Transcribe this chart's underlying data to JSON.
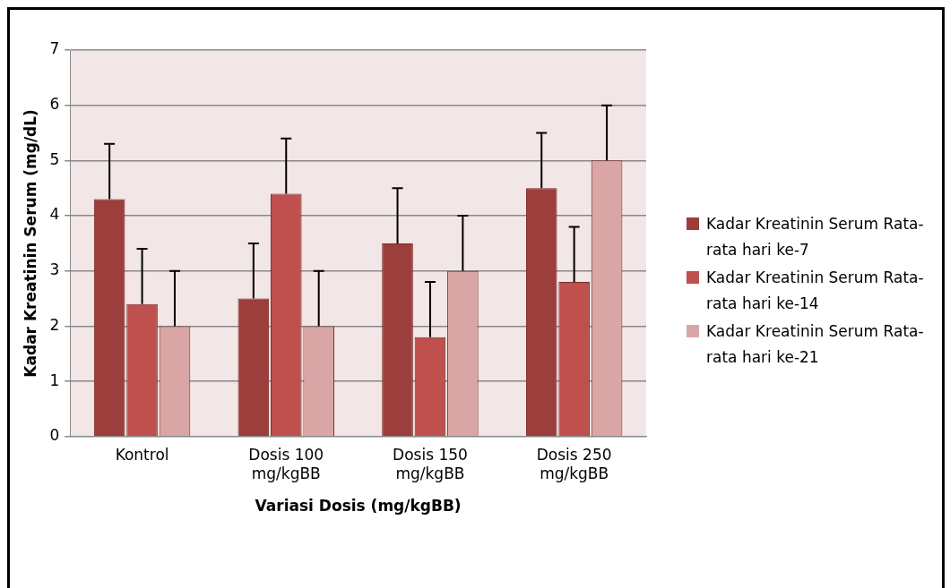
{
  "chart_data": {
    "type": "bar",
    "xlabel": "Variasi Dosis (mg/kgBB)",
    "ylabel": "Kadar Kreatinin Serum (mg/dL)",
    "categories": [
      "Kontrol",
      "Dosis 100 mg/kgBB",
      "Dosis 150 mg/kgBB",
      "Dosis 250 mg/kgBB"
    ],
    "series": [
      {
        "name": "Kadar Kreatinin Serum Rata-rata hari ke-7",
        "color": "#9c3e3c",
        "values": [
          4.3,
          2.5,
          3.5,
          4.5
        ],
        "errors": [
          [
            4.3,
            5.3
          ],
          [
            2.5,
            3.5
          ],
          [
            3.5,
            4.5
          ],
          [
            4.5,
            5.5
          ]
        ]
      },
      {
        "name": "Kadar Kreatinin Serum Rata-rata hari ke-14",
        "color": "#c0504d",
        "values": [
          2.4,
          4.4,
          1.8,
          2.8
        ],
        "errors": [
          [
            2.4,
            3.4
          ],
          [
            4.4,
            5.4
          ],
          [
            1.8,
            2.8
          ],
          [
            2.8,
            3.8
          ]
        ]
      },
      {
        "name": "Kadar Kreatinin Serum Rata-rata hari ke-21",
        "color": "#d9a6a5",
        "values": [
          2.0,
          2.0,
          3.0,
          5.0
        ],
        "errors": [
          [
            2.0,
            3.0
          ],
          [
            2.0,
            3.0
          ],
          [
            3.0,
            4.0
          ],
          [
            5.0,
            6.0
          ]
        ]
      }
    ],
    "ylim": [
      0,
      7
    ],
    "yticks": [
      0,
      1,
      2,
      3,
      4,
      5,
      6,
      7
    ],
    "grid": "y",
    "legend": "right"
  }
}
